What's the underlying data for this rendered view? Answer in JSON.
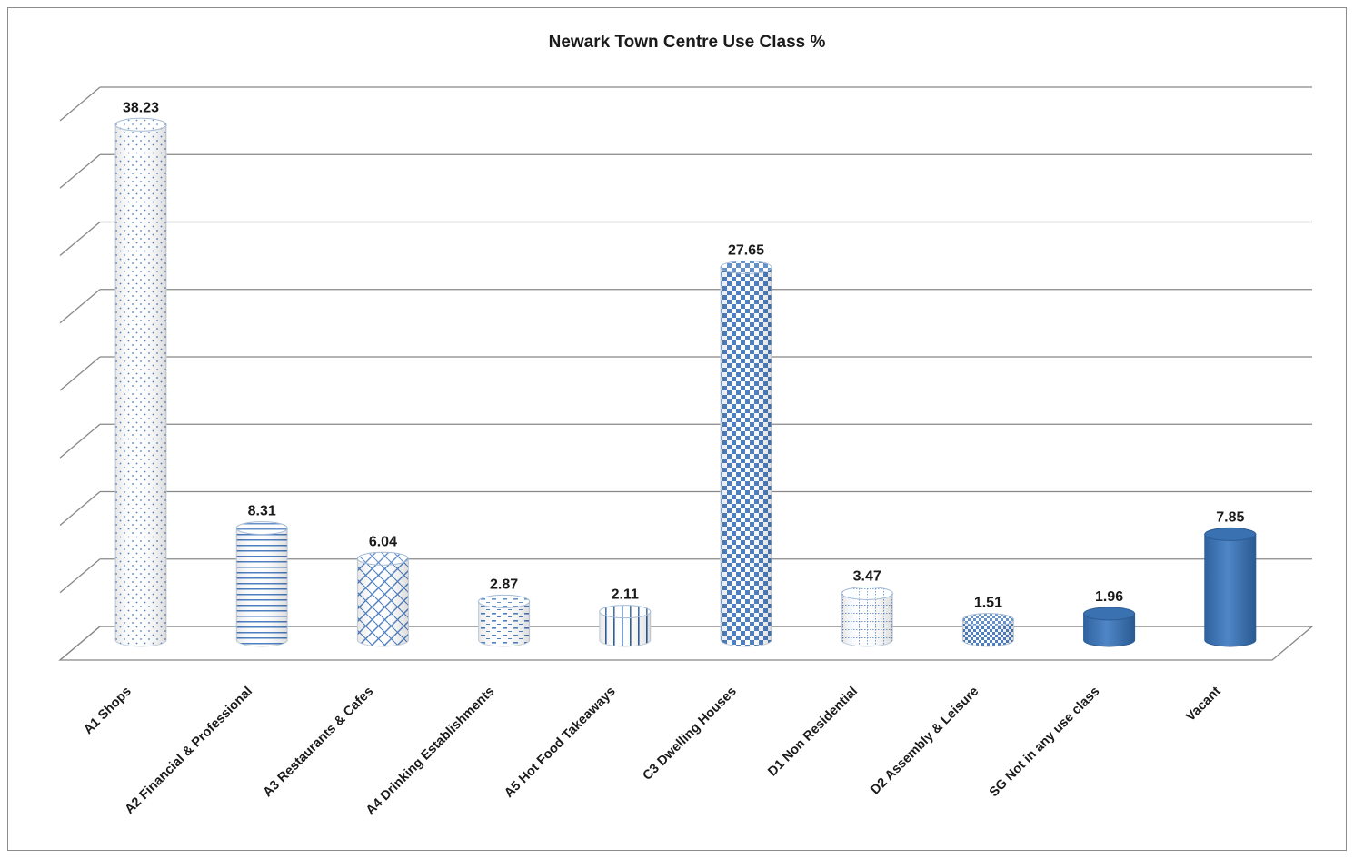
{
  "chart_data": {
    "type": "bar",
    "title": "Newark Town Centre Use Class %",
    "categories": [
      "A1 Shops",
      "A2 Financial & Professional",
      "A3 Restaurants & Cafes",
      "A4 Drinking Establishments",
      "A5 Hot Food Takeaways",
      "C3 Dwelling Houses",
      "D1 Non Residential",
      "D2 Assembly & Leisure",
      "SG Not in any use class",
      "Vacant"
    ],
    "values": [
      38.23,
      8.31,
      6.04,
      2.87,
      2.11,
      27.65,
      3.47,
      1.51,
      1.96,
      7.85
    ],
    "value_labels": [
      "38.23",
      "8.31",
      "6.04",
      "2.87",
      "2.11",
      "27.65",
      "3.47",
      "1.51",
      "1.96",
      "7.85"
    ],
    "ylim": [
      0,
      40
    ],
    "y_gridline_step": 5,
    "y_tick_labels_shown": false,
    "grid": true,
    "legend": "none",
    "bar_shape": "3d-cylinder",
    "bar_patterns": [
      "dots",
      "horizontal-lines",
      "diagonal-weave",
      "dashes",
      "vertical-grid",
      "checkerboard",
      "small-grid",
      "diagonal-checker",
      "solid",
      "solid"
    ],
    "colors": {
      "accent": "#3b73b3",
      "accent_dark": "#2b5c96",
      "pattern": "#4a7ec2",
      "gridline": "#888888"
    }
  }
}
